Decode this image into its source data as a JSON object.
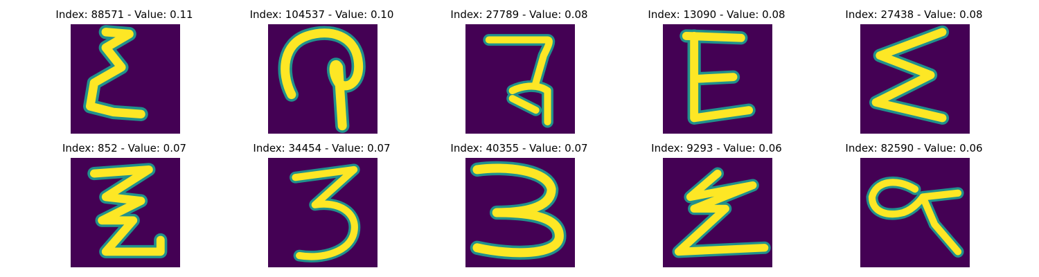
{
  "colors": {
    "background": "#440154",
    "stroke_outer": "#21918c",
    "stroke_mid": "#5ec962",
    "stroke_core": "#fde725"
  },
  "panels": [
    {
      "title": "Index: 88571 - Value: 0.11",
      "glyph": "sigma-like-character"
    },
    {
      "title": "Index: 104537 - Value: 0.10",
      "glyph": "hook-like-character"
    },
    {
      "title": "Index: 27789 - Value: 0.08",
      "glyph": "devanagari-like-character"
    },
    {
      "title": "Index: 13090 - Value: 0.08",
      "glyph": "E-like-character"
    },
    {
      "title": "Index: 27438 - Value: 0.08",
      "glyph": "sigma-like-character"
    },
    {
      "title": "Index: 852 - Value: 0.07",
      "glyph": "zigzag-character"
    },
    {
      "title": "Index: 34454 - Value: 0.07",
      "glyph": "three-like-character"
    },
    {
      "title": "Index: 40355 - Value: 0.07",
      "glyph": "three-like-character"
    },
    {
      "title": "Index: 9293 - Value: 0.06",
      "glyph": "zigzag-character"
    },
    {
      "title": "Index: 82590 - Value: 0.06",
      "glyph": "loop-character"
    }
  ]
}
